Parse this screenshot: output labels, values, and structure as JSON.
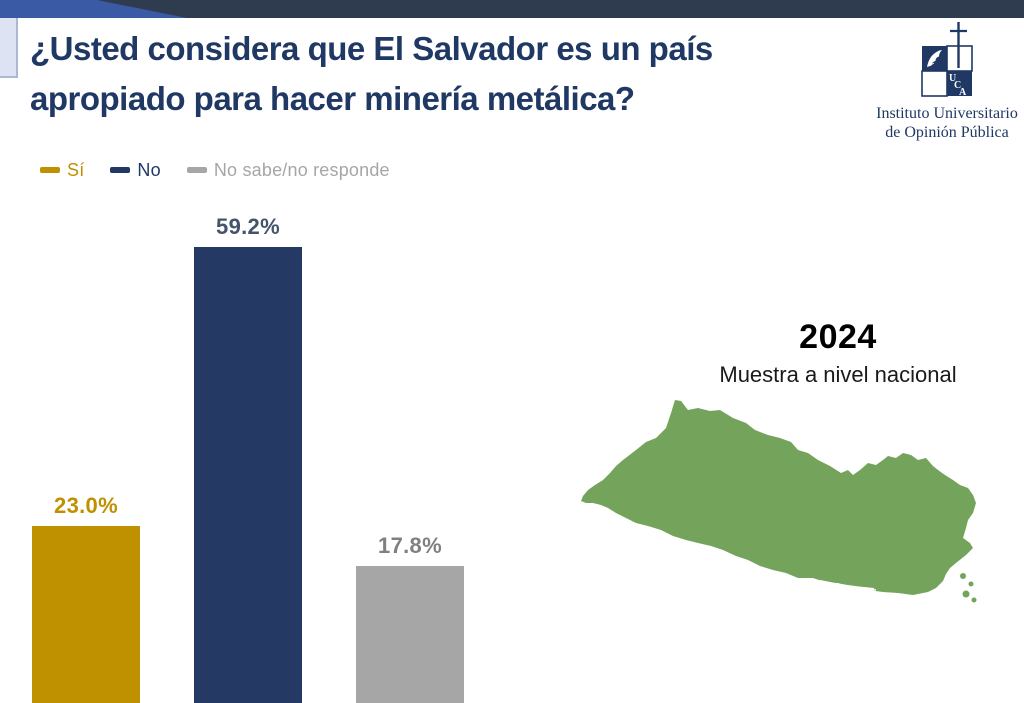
{
  "header": {
    "title_line1": "¿Usted considera que El Salvador es un país",
    "title_line2": "apropiado para hacer minería metálica?"
  },
  "logo": {
    "monogram": "UCA",
    "monogram_letters": [
      "U",
      "C",
      "A"
    ],
    "org_line1": "Instituto Universitario",
    "org_line2": "de Opinión Pública"
  },
  "legend": {
    "items": [
      {
        "label": "Sí",
        "color": "#BF9000",
        "text_color": "#BF9000"
      },
      {
        "label": "No",
        "color": "#1F3864",
        "text_color": "#1F3864"
      },
      {
        "label": "No sabe/no responde",
        "color": "#A6A6A6",
        "text_color": "#A6A6A6"
      }
    ]
  },
  "chart_data": {
    "type": "bar",
    "title": "¿Usted considera que El Salvador es un país apropiado para hacer minería metálica?",
    "categories": [
      "Sí",
      "No",
      "No sabe/no responde"
    ],
    "values": [
      23.0,
      59.2,
      17.8
    ],
    "data_labels": [
      "23.0%",
      "59.2%",
      "17.8%"
    ],
    "bar_colors": [
      "#BF9000",
      "#243A64",
      "#A6A6A6"
    ],
    "label_colors": [
      "#BF9000",
      "#44546A",
      "#808080"
    ],
    "ylim": [
      0,
      65
    ],
    "grid": false,
    "axes_visible": false,
    "legend_position": "top-left",
    "xlabel": "",
    "ylabel": ""
  },
  "annotation": {
    "year": "2024",
    "subtitle": "Muestra a nivel nacional",
    "map_region": "El Salvador",
    "map_color": "#74A45C"
  },
  "decor": {
    "top_bar_color": "#2F3B4E",
    "wedge_color": "#3A5AA5",
    "left_tab_color": "#DDE3F2",
    "accent_navy": "#1F3864"
  }
}
